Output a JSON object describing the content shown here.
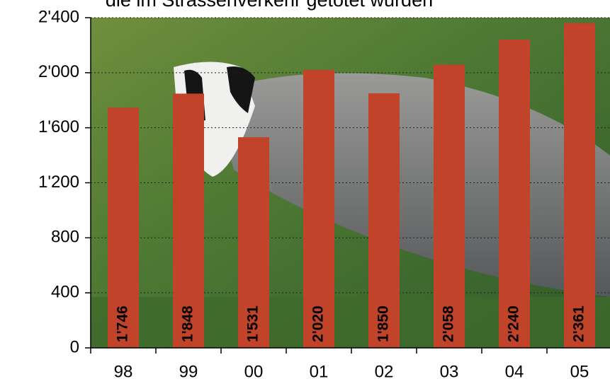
{
  "chart_data": {
    "type": "bar",
    "title": "die im Strassenverkehr getötet wurden",
    "categories": [
      "98",
      "99",
      "00",
      "01",
      "02",
      "03",
      "04",
      "05"
    ],
    "values": [
      1746,
      1848,
      1531,
      2020,
      1850,
      2058,
      2240,
      2361
    ],
    "value_labels": [
      "1'746",
      "1'848",
      "1'531",
      "2'020",
      "1'850",
      "2'058",
      "2'240",
      "2'361"
    ],
    "color": "#c0432a",
    "ylim": [
      0,
      2400
    ],
    "yticks": [
      0,
      400,
      800,
      {
        "value": 1200,
        "label": "1'200"
      },
      {
        "value": 1600,
        "label": "1'600"
      },
      {
        "value": 2000,
        "label": "2'000"
      },
      {
        "value": 2400,
        "label": "2'400"
      }
    ],
    "grid": true
  }
}
